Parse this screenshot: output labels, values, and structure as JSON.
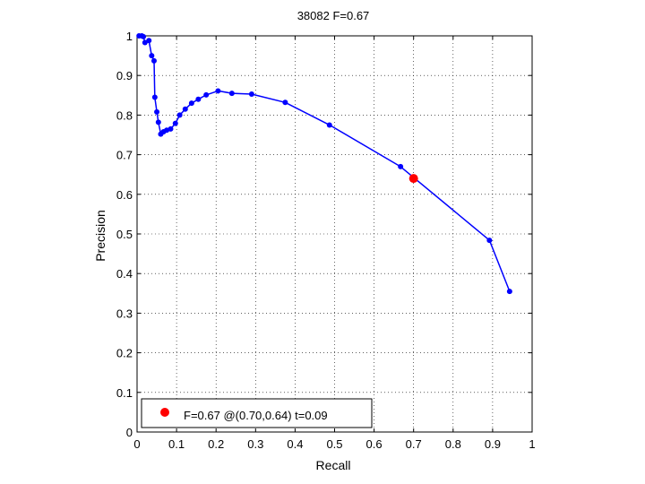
{
  "chart_data": {
    "type": "line",
    "title": "38082 F=0.67",
    "xlabel": "Recall",
    "ylabel": "Precision",
    "xlim": [
      0,
      1
    ],
    "ylim": [
      0,
      1
    ],
    "grid": true,
    "x_ticks": [
      "0",
      "0.1",
      "0.2",
      "0.3",
      "0.4",
      "0.5",
      "0.6",
      "0.7",
      "0.8",
      "0.9",
      "1"
    ],
    "y_ticks": [
      "0",
      "0.1",
      "0.2",
      "0.3",
      "0.4",
      "0.5",
      "0.6",
      "0.7",
      "0.8",
      "0.9",
      "1"
    ],
    "series": [
      {
        "color": "#0000ff",
        "marker": "dot",
        "x": [
          0.005,
          0.012,
          0.016,
          0.02,
          0.03,
          0.037,
          0.043,
          0.045,
          0.05,
          0.054,
          0.06,
          0.067,
          0.075,
          0.085,
          0.097,
          0.108,
          0.122,
          0.138,
          0.155,
          0.175,
          0.205,
          0.24,
          0.29,
          0.375,
          0.487,
          0.667,
          0.892,
          0.943
        ],
        "y": [
          1.0,
          1.0,
          0.998,
          0.983,
          0.988,
          0.95,
          0.937,
          0.845,
          0.808,
          0.782,
          0.752,
          0.758,
          0.762,
          0.765,
          0.779,
          0.8,
          0.815,
          0.83,
          0.84,
          0.851,
          0.861,
          0.855,
          0.853,
          0.832,
          0.775,
          0.67,
          0.484,
          0.355
        ]
      }
    ],
    "best_point": {
      "x": 0.7,
      "y": 0.64,
      "color": "#ff0000",
      "legend_label": "F=0.67 @(0.70,0.64) t=0.09"
    },
    "legend_position": "bottom-left"
  }
}
